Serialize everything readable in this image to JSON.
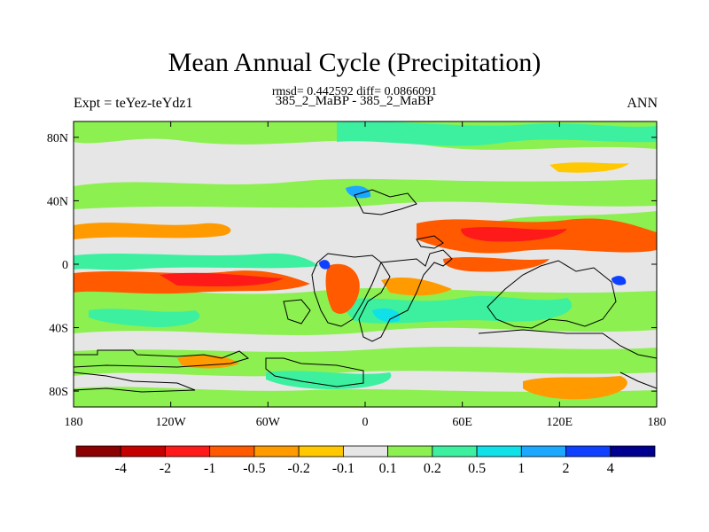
{
  "title": "Mean Annual Cycle (Precipitation)",
  "stats": "rmsd= 0.442592 diff= 0.0866091",
  "experiment": "Expt = teYez-teYdz1",
  "cases": "385_2_MaBP - 385_2_MaBP",
  "season": "ANN",
  "map": {
    "lat_range": [
      -90,
      90
    ],
    "lon_range": [
      -180,
      180
    ],
    "lat_ticks": [
      {
        "label": "80N",
        "lat": 80
      },
      {
        "label": "40N",
        "lat": 40
      },
      {
        "label": "0",
        "lat": 0
      },
      {
        "label": "40S",
        "lat": -40
      },
      {
        "label": "80S",
        "lat": -80
      }
    ],
    "lon_ticks": [
      {
        "label": "180",
        "lon": -180
      },
      {
        "label": "120W",
        "lon": -120
      },
      {
        "label": "60W",
        "lon": -60
      },
      {
        "label": "0",
        "lon": 0
      },
      {
        "label": "60E",
        "lon": 60
      },
      {
        "label": "120E",
        "lon": 120
      },
      {
        "label": "180",
        "lon": 180
      }
    ]
  },
  "colorbar": {
    "colors": [
      "#8b0000",
      "#c40000",
      "#ff1a1a",
      "#ff5a00",
      "#ff9a00",
      "#ffc800",
      "#e6e6e6",
      "#8cf050",
      "#3cf0a0",
      "#10e0e8",
      "#1ca8ff",
      "#1040ff",
      "#000090"
    ],
    "labels": [
      "-4",
      "-2",
      "-1",
      "-0.5",
      "-0.2",
      "-0.1",
      "0.1",
      "0.2",
      "0.5",
      "1",
      "2",
      "4"
    ]
  }
}
